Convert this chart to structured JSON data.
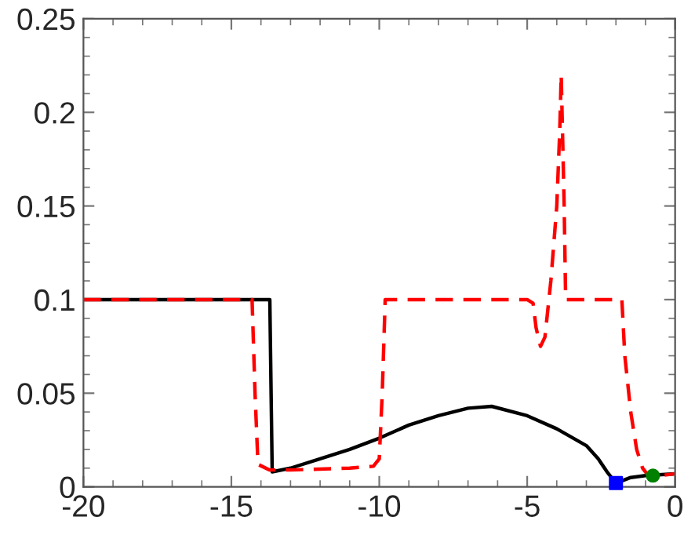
{
  "chart_data": {
    "type": "line",
    "xlim": [
      -20,
      0
    ],
    "ylim": [
      0,
      0.25
    ],
    "xticks": [
      -20,
      -15,
      -10,
      -5,
      0
    ],
    "yticks": [
      0,
      0.05,
      0.1,
      0.15,
      0.2,
      0.25
    ],
    "grid": false,
    "legend": false,
    "series": [
      {
        "color": "#000000",
        "line_style": "solid",
        "marker": "none",
        "x": [
          -20,
          -13.7,
          -13.62,
          -13,
          -12,
          -11,
          -10,
          -9,
          -8,
          -7,
          -6.2,
          -5,
          -4,
          -3,
          -2.6,
          -2.3,
          -2,
          -1.5,
          -1,
          0
        ],
        "values": [
          0.1,
          0.1,
          0.008,
          0.01,
          0.015,
          0.02,
          0.026,
          0.033,
          0.038,
          0.042,
          0.043,
          0.038,
          0.031,
          0.022,
          0.015,
          0.008,
          0.002,
          0.005,
          0.006,
          0.007
        ]
      },
      {
        "color": "#ff0000",
        "line_style": "dashed",
        "marker": "none",
        "x": [
          -20,
          -14.3,
          -14.2,
          -14.1,
          -13.7,
          -13,
          -11,
          -10.2,
          -10,
          -9.9,
          -9.8,
          -5,
          -4.8,
          -4.7,
          -4.55,
          -4.4,
          -4.2,
          -4.0,
          -3.9,
          -3.85,
          -3.75,
          -3.7,
          -1.8,
          -1.7,
          -1.5,
          -1.3,
          -1.1,
          -0.9,
          -0.5,
          0
        ],
        "values": [
          0.1,
          0.1,
          0.05,
          0.012,
          0.009,
          0.009,
          0.01,
          0.011,
          0.015,
          0.05,
          0.1,
          0.1,
          0.098,
          0.085,
          0.075,
          0.08,
          0.11,
          0.15,
          0.19,
          0.22,
          0.15,
          0.1,
          0.1,
          0.07,
          0.04,
          0.02,
          0.01,
          0.006,
          0.006,
          0.007
        ]
      },
      {
        "type": "scatter",
        "color": "#0000ff",
        "marker": "square",
        "x": [
          -2
        ],
        "values": [
          0.002
        ]
      },
      {
        "type": "scatter",
        "color": "#008000",
        "marker": "circle",
        "x": [
          -0.75
        ],
        "values": [
          0.006
        ]
      }
    ]
  }
}
